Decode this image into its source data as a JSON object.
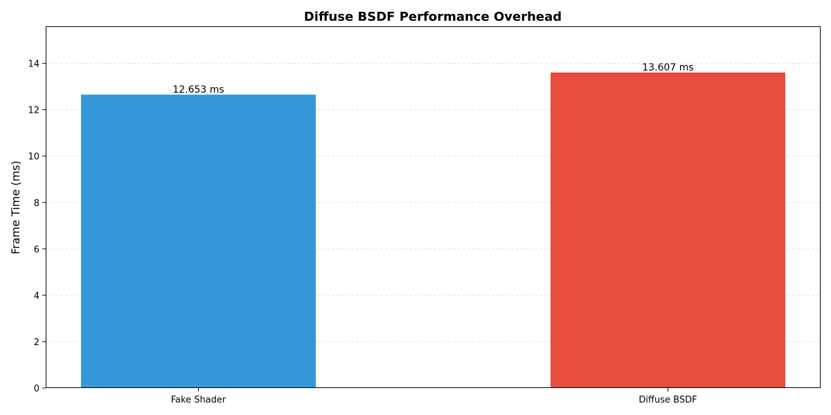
{
  "chart_data": {
    "type": "bar",
    "title": "Diffuse BSDF Performance Overhead",
    "xlabel": "",
    "ylabel": "Frame Time (ms)",
    "categories": [
      "Fake Shader",
      "Diffuse BSDF"
    ],
    "values": [
      12.653,
      13.607
    ],
    "value_labels": [
      "12.653 ms",
      "13.607 ms"
    ],
    "colors": [
      "#3498db",
      "#e74c3c"
    ],
    "ylim": [
      0,
      15.6
    ],
    "yticks": [
      0,
      2,
      4,
      6,
      8,
      10,
      12,
      14
    ],
    "grid": "horizontal dashed",
    "legend": "none"
  }
}
